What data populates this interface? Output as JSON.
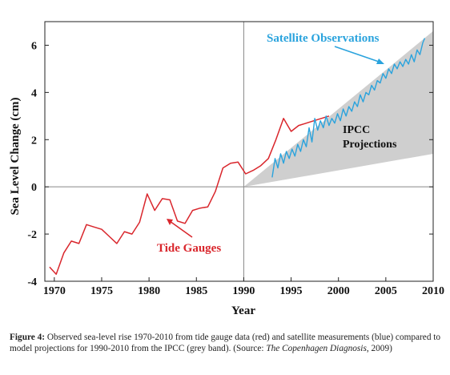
{
  "chart_data": {
    "type": "line",
    "xlabel": "Year",
    "ylabel": "Sea Level Change (cm)",
    "xlim": [
      1969,
      2010
    ],
    "ylim": [
      -4,
      7
    ],
    "x_ticks": [
      1970,
      1975,
      1980,
      1985,
      1990,
      1995,
      2000,
      2005,
      2010
    ],
    "y_ticks": [
      -4,
      -2,
      0,
      2,
      4,
      6
    ],
    "grid": false,
    "reference_lines": {
      "x": 1990,
      "y": 0
    },
    "series": [
      {
        "name": "Tide Gauges",
        "color": "#d9262c",
        "x": [
          1969.5,
          1970.2,
          1971,
          1971.8,
          1972.6,
          1973.4,
          1974.2,
          1975,
          1975.8,
          1976.6,
          1977.4,
          1978.2,
          1979,
          1979.8,
          1980.6,
          1981.4,
          1982.2,
          1983,
          1983.8,
          1984.6,
          1985.4,
          1986.2,
          1987,
          1987.8,
          1988.6,
          1989.4,
          1990.2,
          1991,
          1991.8,
          1992.6,
          1993.4,
          1994.2,
          1995,
          1995.8,
          1996.6,
          1997.4,
          1998.2,
          1999
        ],
        "y": [
          -3.4,
          -3.7,
          -2.8,
          -2.3,
          -2.4,
          -1.6,
          -1.7,
          -1.8,
          -2.1,
          -2.4,
          -1.9,
          -2.0,
          -1.5,
          -0.3,
          -1.0,
          -0.5,
          -0.55,
          -1.45,
          -1.55,
          -1.0,
          -0.9,
          -0.85,
          -0.2,
          0.8,
          1.0,
          1.05,
          0.55,
          0.7,
          0.9,
          1.2,
          2.0,
          2.9,
          2.35,
          2.6,
          2.7,
          2.8,
          2.9,
          3.0
        ]
      },
      {
        "name": "Satellite Observations",
        "color": "#2aa3dd",
        "x": [
          1993,
          1993.3,
          1993.6,
          1993.9,
          1994.2,
          1994.5,
          1994.8,
          1995.1,
          1995.4,
          1995.7,
          1996,
          1996.3,
          1996.6,
          1996.9,
          1997.2,
          1997.5,
          1997.8,
          1998.1,
          1998.4,
          1998.7,
          1999,
          1999.3,
          1999.6,
          1999.9,
          2000.2,
          2000.5,
          2000.8,
          2001.1,
          2001.4,
          2001.7,
          2002,
          2002.3,
          2002.6,
          2002.9,
          2003.2,
          2003.5,
          2003.8,
          2004.1,
          2004.4,
          2004.7,
          2005,
          2005.3,
          2005.6,
          2005.9,
          2006.2,
          2006.5,
          2006.8,
          2007.1,
          2007.4,
          2007.7,
          2008,
          2008.3,
          2008.6,
          2008.9,
          2009.1
        ],
        "y": [
          0.4,
          1.2,
          0.8,
          1.4,
          1.0,
          1.5,
          1.2,
          1.6,
          1.3,
          1.8,
          1.5,
          2.0,
          1.7,
          2.5,
          1.9,
          2.9,
          2.4,
          2.8,
          2.5,
          3.0,
          2.6,
          2.9,
          2.7,
          3.1,
          2.8,
          3.3,
          3.0,
          3.4,
          3.2,
          3.6,
          3.4,
          3.9,
          3.6,
          4.0,
          3.9,
          4.3,
          4.1,
          4.5,
          4.4,
          4.8,
          4.6,
          5.0,
          4.8,
          5.2,
          5.0,
          5.3,
          5.1,
          5.4,
          5.2,
          5.6,
          5.3,
          5.8,
          5.6,
          6.1,
          6.3
        ]
      }
    ],
    "band": {
      "name": "IPCC Projections",
      "color": "#cfcfcf",
      "x": [
        1990,
        2010
      ],
      "lower": [
        0,
        1.4
      ],
      "upper": [
        0,
        6.6
      ]
    },
    "annotations": {
      "satellite": "Satellite Observations",
      "ipcc_line1": "IPCC",
      "ipcc_line2": "Projections",
      "tide": "Tide Gauges"
    }
  },
  "caption": {
    "label": "Figure 4:",
    "text1": " Observed sea-level rise 1970-2010 from tide gauge data (red) and satellite measurements (blue) compared to model projections for 1990-2010 from the IPCC  (grey band). (Source: ",
    "source_italic": "The Copenhagen Diagnosis",
    "text2": ", 2009)"
  }
}
